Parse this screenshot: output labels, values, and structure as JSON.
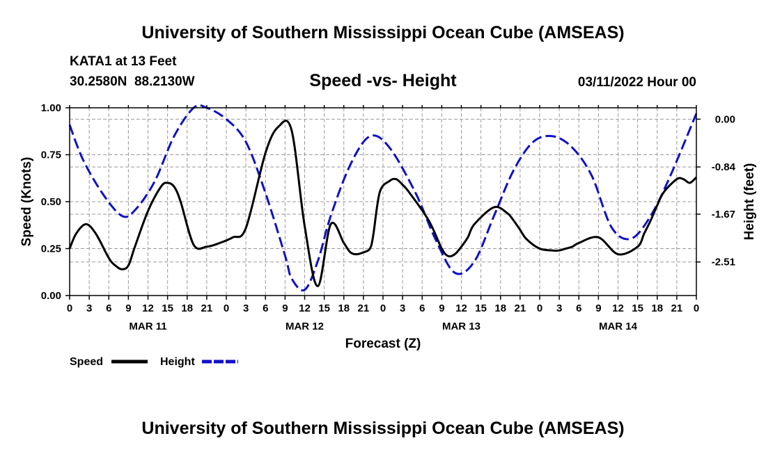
{
  "header": {
    "title": "University of Southern Mississippi Ocean Cube (AMSEAS)",
    "station": "KATA1 at 13 Feet",
    "coords": "30.2580N  88.2130W",
    "plot_name": "Speed -vs- Height",
    "date": "03/11/2022 Hour 00"
  },
  "footer": {
    "title": "University of Southern Mississippi Ocean Cube (AMSEAS)"
  },
  "legend": {
    "speed": "Speed",
    "height": "Height"
  },
  "colors": {
    "speed": "#000000",
    "height": "#1010c8",
    "grid": "#999999"
  },
  "chart_data": {
    "type": "line",
    "title": "Speed -vs- Height",
    "xlabel": "Forecast (Z)",
    "ylabel": "Speed (Knots)",
    "ylabel_right": "Height (feet)",
    "xlim": [
      0,
      96
    ],
    "ylim": [
      0,
      1.0
    ],
    "ylim_right": [
      -3.1,
      0.2
    ],
    "x_ticks": [
      0,
      3,
      6,
      9,
      12,
      15,
      18,
      21,
      24,
      27,
      30,
      33,
      36,
      39,
      42,
      45,
      48,
      51,
      54,
      57,
      60,
      63,
      66,
      69,
      72,
      75,
      78,
      81,
      84,
      87,
      90,
      93,
      96
    ],
    "x_tick_labels": [
      "0",
      "3",
      "6",
      "9",
      "12",
      "15",
      "18",
      "21",
      "0",
      "3",
      "6",
      "9",
      "12",
      "15",
      "18",
      "21",
      "0",
      "3",
      "6",
      "9",
      "12",
      "15",
      "18",
      "21",
      "0",
      "3",
      "6",
      "9",
      "12",
      "15",
      "18",
      "21",
      "0"
    ],
    "day_labels": [
      {
        "x": 12,
        "label": "MAR 11"
      },
      {
        "x": 36,
        "label": "MAR 12"
      },
      {
        "x": 60,
        "label": "MAR 13"
      },
      {
        "x": 84,
        "label": "MAR 14"
      }
    ],
    "y_ticks": [
      0,
      0.25,
      0.5,
      0.75,
      1.0
    ],
    "y_tick_labels": [
      "0.00",
      "0.25",
      "0.50",
      "0.75",
      "1.00"
    ],
    "y_ticks_right": [
      0.0,
      -0.84,
      -1.67,
      -2.51
    ],
    "y_tick_labels_right": [
      "0.00",
      "-0.84",
      "-1.67",
      "-2.51"
    ],
    "grid": true,
    "series": [
      {
        "name": "Speed",
        "axis": "left",
        "style": "solid",
        "x": [
          0,
          1,
          2.5,
          4,
          6,
          7,
          8,
          9,
          10,
          12,
          14,
          15,
          16,
          17,
          19,
          21,
          23,
          25,
          27,
          30,
          32,
          34,
          36,
          38,
          40,
          42,
          43,
          44,
          45,
          46,
          46.5,
          47.5,
          49,
          50,
          51,
          52,
          55,
          57,
          58,
          59,
          60,
          61,
          62,
          65,
          67,
          68,
          69,
          70,
          72,
          74,
          75,
          76,
          77,
          78,
          81,
          84,
          87,
          88,
          89,
          90,
          91,
          93,
          94,
          95,
          96
        ],
        "values": [
          0.25,
          0.33,
          0.38,
          0.33,
          0.2,
          0.16,
          0.14,
          0.16,
          0.26,
          0.45,
          0.58,
          0.6,
          0.58,
          0.5,
          0.27,
          0.26,
          0.28,
          0.31,
          0.36,
          0.76,
          0.9,
          0.88,
          0.37,
          0.05,
          0.38,
          0.28,
          0.23,
          0.22,
          0.23,
          0.25,
          0.32,
          0.55,
          0.61,
          0.62,
          0.59,
          0.55,
          0.4,
          0.25,
          0.21,
          0.22,
          0.26,
          0.31,
          0.38,
          0.47,
          0.44,
          0.4,
          0.35,
          0.3,
          0.25,
          0.24,
          0.24,
          0.25,
          0.26,
          0.28,
          0.31,
          0.22,
          0.26,
          0.33,
          0.4,
          0.48,
          0.55,
          0.62,
          0.62,
          0.6,
          0.63
        ]
      },
      {
        "name": "Height",
        "axis": "right",
        "style": "dashed",
        "x": [
          0,
          2,
          5,
          8,
          10,
          13,
          16,
          19,
          21,
          24,
          27,
          30,
          33,
          34,
          36,
          38,
          40,
          43,
          46,
          49,
          53,
          56,
          59,
          62,
          65,
          68,
          71,
          74,
          77,
          80,
          83,
          86,
          89,
          92,
          96
        ],
        "values": [
          -0.1,
          -0.7,
          -1.3,
          -1.7,
          -1.6,
          -1.1,
          -0.3,
          0.2,
          0.2,
          0.0,
          -0.4,
          -1.3,
          -2.4,
          -2.8,
          -3.0,
          -2.5,
          -1.7,
          -0.8,
          -0.3,
          -0.5,
          -1.3,
          -2.1,
          -2.7,
          -2.5,
          -1.7,
          -0.9,
          -0.4,
          -0.3,
          -0.5,
          -1.0,
          -1.9,
          -2.1,
          -1.7,
          -1.0,
          0.1
        ]
      }
    ]
  }
}
